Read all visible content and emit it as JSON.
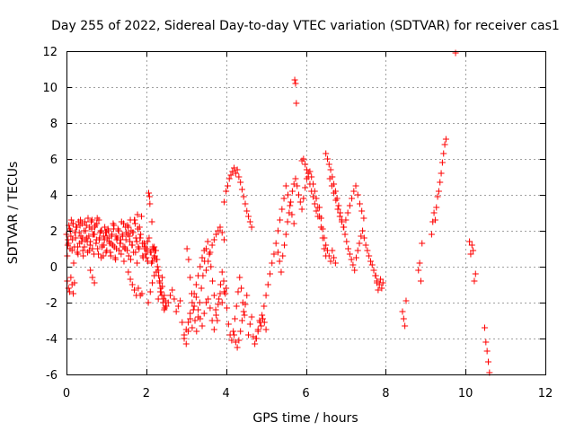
{
  "chart_data": {
    "type": "scatter",
    "title": "Day 255 of 2022, Sidereal Day-to-day VTEC variation (SDTVAR) for receiver cas1",
    "xlabel": "GPS time / hours",
    "ylabel": "SDTVAR / TECUs",
    "xlim": [
      0,
      12
    ],
    "ylim": [
      -6,
      12
    ],
    "x_ticks": [
      0,
      2,
      4,
      6,
      8,
      10,
      12
    ],
    "y_ticks": [
      -6,
      -4,
      -2,
      0,
      2,
      4,
      6,
      8,
      10,
      12
    ],
    "x_tick_labels": [
      "0",
      "2",
      "4",
      "6",
      "8",
      "10",
      "12"
    ],
    "y_tick_labels": [
      "-6",
      "-4",
      "-2",
      "0",
      "2",
      "4",
      "6",
      "8",
      "10",
      "12"
    ],
    "grid": true,
    "marker": "+",
    "marker_color": "#ff0000",
    "series": [
      {
        "name": "cas1",
        "x": [
          0.0,
          0.03,
          0.06,
          0.09,
          0.12,
          0.15,
          0.18,
          0.21,
          0.24,
          0.27,
          0.3,
          0.33,
          0.36,
          0.39,
          0.42,
          0.45,
          0.48,
          0.51,
          0.54,
          0.57,
          0.6,
          0.63,
          0.66,
          0.69,
          0.72,
          0.75,
          0.78,
          0.81,
          0.84,
          0.87,
          0.9,
          0.93,
          0.96,
          0.99,
          1.02,
          1.05,
          1.08,
          1.11,
          1.14,
          1.17,
          1.2,
          1.23,
          1.26,
          1.29,
          1.32,
          1.35,
          1.38,
          1.41,
          1.44,
          1.47,
          1.5,
          1.53,
          1.56,
          1.59,
          1.62,
          1.65,
          1.68,
          1.71,
          1.74,
          1.77,
          1.8,
          1.83,
          1.86,
          1.89,
          1.92,
          1.95,
          1.98,
          2.01,
          2.04,
          2.07,
          2.1,
          2.13,
          2.16,
          2.19,
          2.22,
          2.25,
          2.28,
          2.31,
          2.34,
          2.37,
          2.4,
          2.43,
          2.46,
          2.49,
          0.02,
          0.05,
          0.08,
          0.11,
          0.14,
          0.17,
          0.2,
          0.23,
          0.26,
          0.29,
          0.32,
          0.35,
          0.38,
          0.41,
          0.44,
          0.47,
          0.5,
          0.53,
          0.56,
          0.59,
          0.62,
          0.65,
          0.68,
          0.71,
          0.74,
          0.77,
          0.8,
          0.83,
          0.86,
          0.89,
          0.92,
          0.95,
          0.98,
          1.01,
          1.04,
          1.07,
          1.1,
          1.13,
          1.16,
          1.19,
          1.22,
          1.25,
          1.28,
          1.31,
          1.34,
          1.37,
          1.4,
          1.43,
          1.46,
          1.49,
          1.52,
          1.55,
          1.58,
          1.61,
          1.64,
          1.67,
          1.7,
          1.73,
          1.76,
          1.79,
          1.82,
          1.85,
          1.88,
          1.91,
          1.94,
          1.97,
          2.0,
          2.03,
          2.06,
          2.09,
          2.12,
          2.15,
          2.18,
          2.21,
          2.24,
          2.27,
          2.3,
          2.33,
          2.36,
          2.39,
          2.42,
          2.45,
          2.48,
          0.04,
          0.1,
          0.16,
          0.22,
          0.28,
          0.34,
          0.4,
          0.46,
          0.52,
          0.58,
          0.64,
          0.7,
          0.76,
          0.82,
          0.88,
          0.94,
          1.0,
          1.06,
          1.12,
          1.18,
          1.24,
          1.3,
          1.36,
          1.42,
          1.48,
          1.54,
          1.6,
          1.66,
          1.72,
          1.78,
          1.84,
          1.9,
          1.96,
          2.02,
          2.08,
          2.14,
          2.2,
          0.02,
          0.05,
          0.08,
          0.11,
          0.14,
          0.17,
          0.2,
          0.6,
          0.65,
          0.7,
          1.55,
          1.6,
          1.65,
          1.7,
          1.75,
          1.8,
          1.85,
          2.05,
          2.1,
          2.15,
          2.2,
          2.25,
          2.3,
          2.35,
          2.4,
          2.45,
          2.5,
          2.55,
          2.6,
          2.65,
          2.7,
          2.75,
          2.8,
          2.85,
          2.9,
          2.95,
          3.0,
          3.05,
          3.1,
          3.15,
          3.2,
          3.25,
          3.3,
          3.35,
          3.4,
          3.45,
          3.5,
          3.55,
          3.6,
          3.65,
          3.7,
          3.75,
          3.8,
          3.85,
          3.9,
          3.95,
          4.0,
          2.95,
          3.0,
          3.05,
          3.1,
          3.15,
          3.2,
          3.25,
          3.3,
          3.35,
          3.4,
          3.45,
          3.5,
          3.55,
          3.6,
          3.65,
          3.7,
          3.75,
          3.8,
          3.85,
          3.9,
          3.95,
          3.02,
          3.06,
          3.1,
          3.14,
          3.18,
          3.22,
          3.26,
          3.3,
          3.34,
          3.38,
          3.42,
          3.46,
          3.5,
          3.54,
          3.58,
          3.62,
          3.66,
          3.7,
          3.74,
          3.78,
          3.82,
          3.86,
          3.9,
          3.94,
          3.98,
          4.02,
          4.06,
          4.1,
          4.14,
          4.18,
          4.22,
          4.26,
          4.3,
          4.34,
          4.38,
          4.42,
          4.46,
          3.95,
          4.0,
          4.04,
          4.08,
          4.12,
          4.16,
          4.2,
          4.24,
          4.28,
          4.32,
          4.36,
          4.4,
          4.44,
          4.48,
          4.52,
          4.56,
          4.6,
          4.64,
          4.2,
          4.24,
          4.28,
          4.32,
          4.36,
          4.4,
          4.44,
          4.48,
          4.52,
          4.56,
          4.6,
          4.64,
          4.68,
          4.72,
          4.76,
          4.8,
          4.84,
          4.88,
          4.92,
          4.96,
          5.0,
          4.75,
          4.8,
          4.85,
          4.9,
          4.95,
          5.0,
          5.05,
          5.1,
          5.15,
          5.2,
          5.25,
          5.3,
          5.35,
          5.4,
          5.45,
          5.5,
          5.55,
          5.6,
          5.65,
          5.7,
          5.3,
          5.34,
          5.38,
          5.42,
          5.46,
          5.5,
          5.54,
          5.58,
          5.62,
          5.66,
          5.7,
          5.74,
          5.78,
          5.82,
          5.86,
          5.9,
          5.94,
          5.98,
          6.02,
          6.06,
          6.1,
          6.14,
          6.18,
          6.22,
          6.26,
          6.3,
          6.34,
          6.38,
          6.42,
          6.46,
          6.5,
          5.72,
          5.74,
          5.76,
          5.9,
          5.94,
          5.98,
          6.02,
          6.06,
          6.1,
          6.14,
          6.18,
          6.22,
          6.26,
          6.3,
          6.34,
          6.38,
          6.42,
          6.46,
          6.5,
          6.54,
          6.58,
          6.62,
          6.66,
          6.7,
          6.74,
          6.5,
          6.54,
          6.58,
          6.62,
          6.66,
          6.7,
          6.74,
          6.78,
          6.82,
          6.86,
          6.9,
          6.94,
          6.98,
          7.02,
          7.06,
          7.1,
          7.14,
          7.18,
          7.22,
          7.26,
          7.3,
          7.34,
          7.38,
          7.42,
          7.46,
          7.5,
          7.54,
          7.58,
          7.62,
          7.66,
          7.7,
          7.74,
          7.78,
          6.6,
          6.65,
          6.7,
          6.75,
          6.8,
          6.85,
          6.9,
          6.95,
          7.0,
          7.05,
          7.1,
          7.15,
          7.2,
          7.25,
          7.3,
          7.35,
          7.4,
          7.45,
          7.75,
          7.78,
          7.81,
          7.84,
          7.87,
          7.9,
          7.93,
          8.42,
          8.45,
          8.48,
          8.51,
          8.82,
          8.85,
          8.88,
          8.91,
          9.15,
          9.18,
          9.21,
          9.24,
          9.27,
          9.3,
          9.33,
          9.36,
          9.39,
          9.42,
          9.45,
          9.48,
          9.51,
          9.75,
          10.1,
          10.13,
          10.16,
          10.19,
          10.22,
          10.25,
          10.48,
          10.51,
          10.54,
          10.57,
          10.6
        ],
        "y": [
          1.8,
          1.2,
          2.3,
          1.0,
          2.6,
          1.5,
          0.2,
          1.9,
          2.2,
          0.8,
          2.5,
          1.3,
          1.7,
          2.4,
          0.6,
          1.1,
          2.0,
          1.6,
          2.7,
          0.9,
          1.4,
          2.1,
          1.8,
          0.7,
          2.3,
          1.5,
          1.0,
          2.6,
          1.9,
          0.5,
          1.2,
          1.7,
          2.2,
          0.8,
          1.6,
          2.0,
          1.3,
          0.6,
          1.8,
          2.4,
          1.1,
          0.4,
          1.5,
          2.1,
          0.9,
          1.3,
          2.5,
          1.7,
          0.3,
          1.0,
          1.9,
          2.3,
          0.6,
          1.4,
          2.0,
          1.2,
          0.8,
          2.6,
          1.6,
          0.2,
          1.1,
          2.2,
          1.8,
          -1.5,
          0.5,
          1.3,
          0.7,
          1.0,
          0.3,
          1.6,
          0.8,
          0.2,
          1.1,
          0.5,
          0.9,
          0.4,
          0.0,
          -0.5,
          -0.9,
          -1.4,
          -0.6,
          -1.8,
          -2.3,
          -2.2,
          0.6,
          1.3,
          2.1,
          1.7,
          0.9,
          2.4,
          1.1,
          1.6,
          2.2,
          0.7,
          1.9,
          2.6,
          1.4,
          0.9,
          2.0,
          1.5,
          2.3,
          0.8,
          1.7,
          1.2,
          2.5,
          1.0,
          1.8,
          2.2,
          1.3,
          2.7,
          0.7,
          1.6,
          2.0,
          1.1,
          0.6,
          1.5,
          1.9,
          0.9,
          2.1,
          1.4,
          0.8,
          1.7,
          1.2,
          2.3,
          0.5,
          1.0,
          1.6,
          2.0,
          1.3,
          0.7,
          1.8,
          2.4,
          1.1,
          1.5,
          0.9,
          2.2,
          1.7,
          0.4,
          1.2,
          1.9,
          2.6,
          0.8,
          1.4,
          2.1,
          1.0,
          1.6,
          2.8,
          0.6,
          1.3,
          1.1,
          0.5,
          1.4,
          4.1,
          3.5,
          0.8,
          0.3,
          1.0,
          0.6,
          0.9,
          0.4,
          -0.2,
          -0.8,
          -1.2,
          -1.6,
          -2.0,
          -2.4,
          -1.9,
          1.5,
          2.0,
          2.4,
          1.9,
          1.1,
          2.3,
          1.6,
          2.5,
          1.4,
          2.2,
          2.6,
          1.8,
          2.4,
          1.5,
          2.0,
          1.2,
          1.9,
          1.6,
          1.3,
          2.1,
          1.7,
          2.0,
          1.5,
          1.1,
          2.2,
          1.8,
          2.6,
          1.9,
          2.4,
          2.9,
          1.6,
          1.3,
          1.0,
          0.9,
          3.9,
          2.5,
          1.1,
          -0.8,
          -1.2,
          -1.4,
          -0.6,
          -1.0,
          -1.5,
          -0.9,
          -0.2,
          -0.6,
          -0.9,
          -0.3,
          -0.7,
          -1.0,
          -1.3,
          -1.6,
          -1.2,
          -1.6,
          -2.0,
          -1.4,
          -0.9,
          -0.5,
          -0.3,
          -1.8,
          -1.4,
          -1.1,
          -1.6,
          -2.2,
          -2.0,
          -1.6,
          -1.3,
          -1.8,
          -2.5,
          -2.2,
          -1.9,
          -3.1,
          -3.8,
          -4.3,
          -3.6,
          -2.9,
          -3.4,
          -2.2,
          -1.7,
          -2.4,
          -2.9,
          -3.3,
          -2.6,
          -2.0,
          -1.8,
          -2.3,
          -3.0,
          -3.5,
          -2.7,
          -2.1,
          -1.5,
          -2.0,
          -1.4,
          -1.2,
          -4.0,
          -3.5,
          -3.1,
          -2.6,
          -2.0,
          -1.5,
          -1.0,
          -0.5,
          0.0,
          0.5,
          0.9,
          -0.2,
          0.3,
          0.8,
          1.2,
          1.5,
          1.8,
          2.0,
          2.2,
          1.9,
          1.5,
          1.0,
          0.4,
          -0.6,
          -1.5,
          -2.4,
          -3.0,
          -3.6,
          -2.8,
          -2.0,
          -1.2,
          -0.5,
          0.3,
          1.0,
          1.4,
          0.7,
          0.0,
          -0.8,
          -1.6,
          -2.4,
          -3.0,
          -1.8,
          -1.0,
          -0.3,
          -0.8,
          -1.5,
          -2.3,
          -3.2,
          -3.8,
          -4.1,
          -3.6,
          -2.9,
          -2.2,
          -1.4,
          -0.6,
          -1.2,
          -2.0,
          -2.7,
          3.6,
          4.2,
          4.5,
          4.9,
          5.1,
          5.3,
          5.5,
          5.2,
          5.4,
          5.0,
          4.7,
          4.3,
          3.9,
          3.5,
          3.1,
          2.8,
          2.5,
          2.2,
          -3.8,
          -4.2,
          -4.5,
          -4.1,
          -3.6,
          -3.0,
          -2.5,
          -2.1,
          -1.6,
          -3.8,
          -3.2,
          -2.8,
          -3.9,
          -4.3,
          -4.0,
          -3.5,
          -3.0,
          -3.3,
          -2.9,
          -3.1,
          -3.5,
          -4.0,
          -3.6,
          -3.1,
          -2.7,
          -2.2,
          -1.6,
          -1.0,
          -0.4,
          0.2,
          0.7,
          1.3,
          2.0,
          2.6,
          3.2,
          3.8,
          4.5,
          4.0,
          3.4,
          2.9,
          2.4,
          0.8,
          0.3,
          -0.3,
          0.6,
          1.2,
          1.8,
          2.5,
          3.0,
          3.6,
          4.2,
          4.6,
          4.9,
          4.5,
          4.0,
          3.6,
          3.2,
          3.8,
          4.4,
          4.9,
          5.2,
          5.3,
          5.0,
          4.6,
          4.2,
          3.8,
          3.3,
          2.8,
          2.2,
          1.6,
          1.0,
          0.6,
          10.4,
          10.2,
          9.1,
          5.9,
          6.0,
          5.7,
          5.4,
          5.0,
          4.6,
          4.2,
          3.9,
          3.5,
          3.1,
          2.8,
          3.3,
          2.7,
          2.1,
          1.6,
          1.2,
          0.9,
          0.6,
          0.3,
          0.9,
          0.5,
          0.2,
          6.3,
          6.0,
          5.7,
          5.4,
          5.0,
          4.6,
          4.2,
          3.8,
          3.4,
          3.0,
          2.6,
          2.2,
          1.8,
          1.4,
          1.0,
          0.7,
          0.4,
          0.1,
          -0.2,
          0.5,
          0.9,
          1.3,
          1.7,
          2.0,
          1.6,
          1.2,
          0.9,
          0.6,
          0.3,
          0.1,
          -0.2,
          -0.5,
          -0.8,
          4.9,
          4.5,
          4.1,
          3.7,
          3.2,
          2.8,
          2.5,
          2.2,
          2.6,
          3.0,
          3.4,
          3.8,
          4.2,
          4.5,
          4.0,
          3.5,
          3.1,
          2.7,
          -0.5,
          -0.9,
          -1.3,
          -1.0,
          -0.7,
          -1.2,
          -0.9,
          -2.5,
          -2.9,
          -3.3,
          -1.9,
          -0.2,
          0.2,
          -0.8,
          1.3,
          1.8,
          2.5,
          3.0,
          2.6,
          3.3,
          3.9,
          4.2,
          4.7,
          5.2,
          5.8,
          6.3,
          6.8,
          7.1,
          11.9,
          1.4,
          0.7,
          1.2,
          0.9,
          -0.8,
          -0.4,
          -3.4,
          -4.2,
          -4.7,
          -5.3,
          -5.9
        ]
      }
    ]
  }
}
